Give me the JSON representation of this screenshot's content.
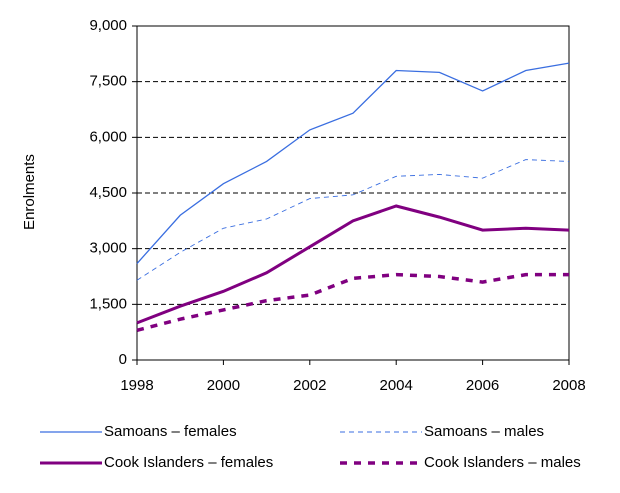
{
  "chart_data": {
    "type": "line",
    "y_label": "Enrolments",
    "x": [
      1998,
      1999,
      2000,
      2001,
      2002,
      2003,
      2004,
      2005,
      2006,
      2007,
      2008
    ],
    "xlim": [
      1998,
      2008
    ],
    "xticks": [
      1998,
      2000,
      2002,
      2004,
      2006,
      2008
    ],
    "ylim": [
      0,
      9000
    ],
    "yticks": [
      0,
      {
        "value": 1500,
        "label": "1,500"
      },
      {
        "value": 3000,
        "label": "3,000"
      },
      {
        "value": 4500,
        "label": "4,500"
      },
      {
        "value": 6000,
        "label": "6,000"
      },
      {
        "value": 7500,
        "label": "7,500"
      },
      {
        "value": 9000,
        "label": "9,000"
      }
    ],
    "grid": true,
    "series": [
      {
        "name": "Samoans – females",
        "color": "#3a6ee0",
        "width": 1.3,
        "dash": false,
        "values": [
          2600,
          3900,
          4750,
          5350,
          6200,
          6650,
          7800,
          7750,
          7250,
          7800,
          8000
        ]
      },
      {
        "name": "Samoans – males",
        "color": "#3a6ee0",
        "width": 0.9,
        "dash": true,
        "values": [
          2150,
          2900,
          3550,
          3800,
          4350,
          4450,
          4950,
          5000,
          4900,
          5400,
          5350
        ]
      },
      {
        "name": "Cook Islanders – females",
        "color": "#800080",
        "width": 3,
        "dash": false,
        "values": [
          1000,
          1450,
          1850,
          2350,
          3050,
          3750,
          4150,
          3850,
          3500,
          3550,
          3500
        ]
      },
      {
        "name": "Cook Islanders – males",
        "color": "#800080",
        "width": 3.5,
        "dash": true,
        "values": [
          800,
          1100,
          1350,
          1600,
          1750,
          2200,
          2300,
          2250,
          2100,
          2300,
          2300
        ]
      }
    ]
  }
}
